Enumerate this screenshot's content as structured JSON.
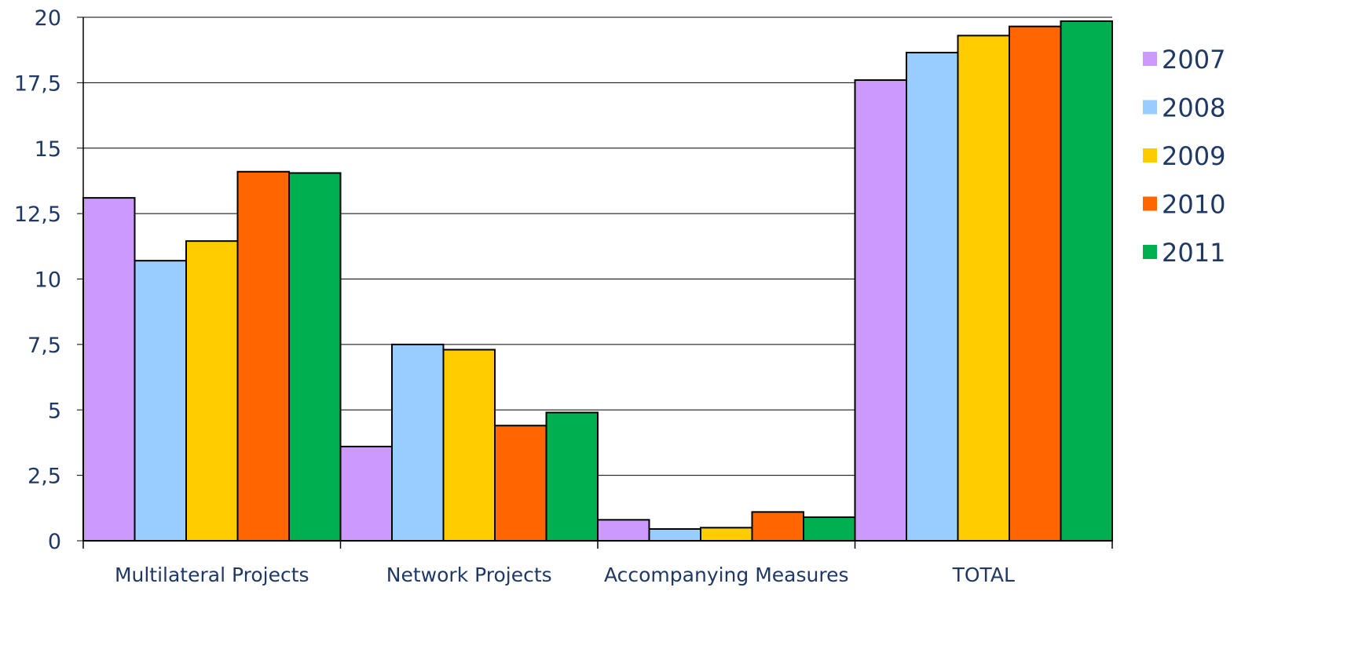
{
  "chart_data": {
    "type": "bar",
    "categories": [
      "Multilateral Projects",
      "Network Projects",
      "Accompanying Measures",
      "TOTAL"
    ],
    "series": [
      {
        "name": "2007",
        "color": "#CC99FF",
        "values": [
          13.1,
          3.6,
          0.8,
          17.6
        ]
      },
      {
        "name": "2008",
        "color": "#99CCFF",
        "values": [
          10.7,
          7.5,
          0.45,
          18.65
        ]
      },
      {
        "name": "2009",
        "color": "#FFCC00",
        "values": [
          11.45,
          7.3,
          0.5,
          19.3
        ]
      },
      {
        "name": "2010",
        "color": "#FF6600",
        "values": [
          14.1,
          4.4,
          1.1,
          19.65
        ]
      },
      {
        "name": "2011",
        "color": "#00B050",
        "values": [
          14.05,
          4.9,
          0.9,
          19.85
        ]
      }
    ],
    "y_ticks": [
      "0",
      "2,5",
      "5",
      "7,5",
      "10",
      "12,5",
      "15",
      "17,5",
      "20"
    ],
    "ylim": [
      0,
      20
    ],
    "title": "",
    "xlabel": "",
    "ylabel": "",
    "grid": true,
    "legend_position": "right",
    "text_color": "#1F3864"
  }
}
